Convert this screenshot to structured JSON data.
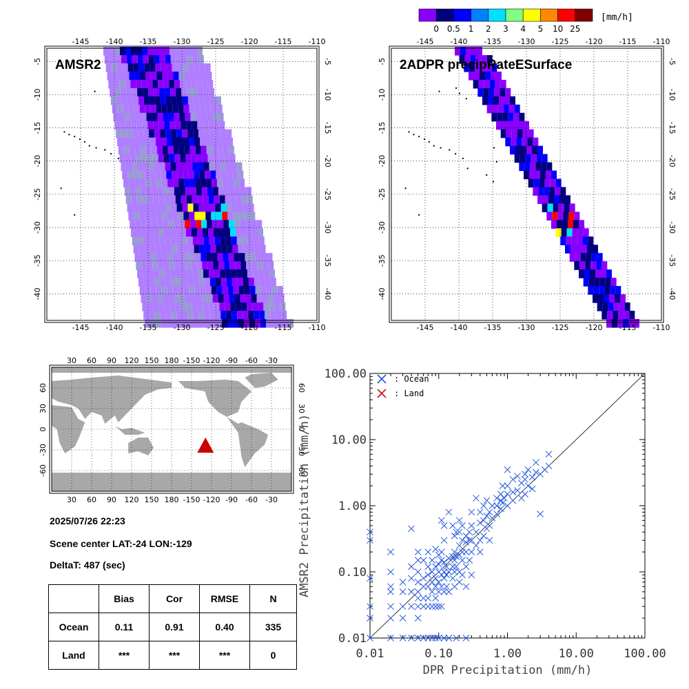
{
  "colorbar": {
    "unit": "[mm/h]",
    "colors": [
      "#8a00ff",
      "#000080",
      "#0000ff",
      "#0080ff",
      "#00e0ff",
      "#80ff80",
      "#ffff00",
      "#ff8800",
      "#ff0000",
      "#800000"
    ],
    "labels": [
      "0",
      "0.5",
      "1",
      "2",
      "3",
      "4",
      "5",
      "10",
      "25"
    ]
  },
  "maps": {
    "amsr2_title": "AMSR2",
    "dpr_title": "2ADPR precipRateESurface",
    "lon_ticks": [
      "-145",
      "-140",
      "-135",
      "-130",
      "-125",
      "-120",
      "-115",
      "-110"
    ],
    "lat_ticks": [
      "-5",
      "-10",
      "-15",
      "-20",
      "-25",
      "-30",
      "-35",
      "-40"
    ]
  },
  "globe": {
    "lon_ticks": [
      "30",
      "60",
      "90",
      "120",
      "150",
      "180",
      "-150",
      "-120",
      "-90",
      "-60",
      "-30"
    ],
    "lat_ticks": [
      "60",
      "30",
      "0",
      "-30",
      "-60"
    ],
    "scene_marker": {
      "lat": -24,
      "lon": -129,
      "color": "#cc0000"
    }
  },
  "info": {
    "date": "2025/07/26 22:23",
    "center": "Scene center LAT:-24   LON:-129",
    "delta": "DeltaT:  487 (sec)"
  },
  "stats": {
    "headers": [
      "",
      "Bias",
      "Cor",
      "RMSE",
      "N"
    ],
    "rows": [
      {
        "label": "Ocean",
        "values": [
          "0.11",
          "0.91",
          "0.40",
          "335"
        ]
      },
      {
        "label": "Land",
        "values": [
          "***",
          "***",
          "***",
          "0"
        ]
      }
    ]
  },
  "chart_data": {
    "type": "scatter",
    "xlabel": "DPR Precipitation (mm/h)",
    "ylabel": "AMSR2 Precipitation (mm/h)",
    "xscale": "log",
    "yscale": "log",
    "xlim": [
      0.01,
      100
    ],
    "ylim": [
      0.01,
      100
    ],
    "tick_labels": [
      "0.01",
      "0.10",
      "1.00",
      "10.00",
      "100.00"
    ],
    "one_to_one_line": true,
    "legend_position": "top-left",
    "series": [
      {
        "name": ": Ocean",
        "color": "#2255dd",
        "points": [
          [
            0.01,
            0.4
          ],
          [
            0.01,
            0.3
          ],
          [
            0.01,
            0.08
          ],
          [
            0.01,
            0.03
          ],
          [
            0.01,
            0.02
          ],
          [
            0.01,
            0.01
          ],
          [
            0.02,
            0.2
          ],
          [
            0.02,
            0.1
          ],
          [
            0.02,
            0.06
          ],
          [
            0.02,
            0.05
          ],
          [
            0.02,
            0.03
          ],
          [
            0.02,
            0.02
          ],
          [
            0.02,
            0.01
          ],
          [
            0.03,
            0.05
          ],
          [
            0.03,
            0.03
          ],
          [
            0.03,
            0.02
          ],
          [
            0.03,
            0.01
          ],
          [
            0.03,
            0.07
          ],
          [
            0.04,
            0.45
          ],
          [
            0.04,
            0.12
          ],
          [
            0.04,
            0.08
          ],
          [
            0.04,
            0.05
          ],
          [
            0.04,
            0.03
          ],
          [
            0.04,
            0.01
          ],
          [
            0.05,
            0.2
          ],
          [
            0.05,
            0.15
          ],
          [
            0.05,
            0.1
          ],
          [
            0.05,
            0.07
          ],
          [
            0.05,
            0.05
          ],
          [
            0.05,
            0.04
          ],
          [
            0.05,
            0.03
          ],
          [
            0.05,
            0.02
          ],
          [
            0.05,
            0.01
          ],
          [
            0.06,
            0.15
          ],
          [
            0.06,
            0.08
          ],
          [
            0.06,
            0.06
          ],
          [
            0.06,
            0.04
          ],
          [
            0.06,
            0.03
          ],
          [
            0.06,
            0.01
          ],
          [
            0.07,
            0.2
          ],
          [
            0.07,
            0.12
          ],
          [
            0.07,
            0.09
          ],
          [
            0.07,
            0.06
          ],
          [
            0.07,
            0.04
          ],
          [
            0.07,
            0.03
          ],
          [
            0.07,
            0.01
          ],
          [
            0.08,
            0.15
          ],
          [
            0.08,
            0.1
          ],
          [
            0.08,
            0.07
          ],
          [
            0.08,
            0.05
          ],
          [
            0.08,
            0.03
          ],
          [
            0.08,
            0.01
          ],
          [
            0.09,
            0.22
          ],
          [
            0.09,
            0.12
          ],
          [
            0.09,
            0.08
          ],
          [
            0.09,
            0.06
          ],
          [
            0.09,
            0.04
          ],
          [
            0.09,
            0.03
          ],
          [
            0.09,
            0.01
          ],
          [
            0.1,
            0.18
          ],
          [
            0.1,
            0.13
          ],
          [
            0.1,
            0.1
          ],
          [
            0.1,
            0.07
          ],
          [
            0.1,
            0.05
          ],
          [
            0.1,
            0.03
          ],
          [
            0.1,
            0.01
          ],
          [
            0.11,
            0.6
          ],
          [
            0.11,
            0.2
          ],
          [
            0.11,
            0.15
          ],
          [
            0.11,
            0.09
          ],
          [
            0.11,
            0.06
          ],
          [
            0.11,
            0.03
          ],
          [
            0.12,
            0.5
          ],
          [
            0.12,
            0.3
          ],
          [
            0.12,
            0.14
          ],
          [
            0.12,
            0.1
          ],
          [
            0.12,
            0.08
          ],
          [
            0.12,
            0.05
          ],
          [
            0.12,
            0.01
          ],
          [
            0.13,
            0.12
          ],
          [
            0.13,
            0.09
          ],
          [
            0.13,
            0.06
          ],
          [
            0.14,
            0.8
          ],
          [
            0.14,
            0.16
          ],
          [
            0.14,
            0.1
          ],
          [
            0.14,
            0.05
          ],
          [
            0.14,
            0.01
          ],
          [
            0.16,
            0.5
          ],
          [
            0.16,
            0.17
          ],
          [
            0.16,
            0.12
          ],
          [
            0.16,
            0.08
          ],
          [
            0.17,
            0.35
          ],
          [
            0.17,
            0.2
          ],
          [
            0.17,
            0.15
          ],
          [
            0.17,
            0.1
          ],
          [
            0.17,
            0.06
          ],
          [
            0.18,
            0.4
          ],
          [
            0.18,
            0.17
          ],
          [
            0.18,
            0.12
          ],
          [
            0.18,
            0.01
          ],
          [
            0.2,
            0.6
          ],
          [
            0.2,
            0.4
          ],
          [
            0.2,
            0.25
          ],
          [
            0.2,
            0.18
          ],
          [
            0.2,
            0.1
          ],
          [
            0.2,
            0.07
          ],
          [
            0.22,
            0.5
          ],
          [
            0.22,
            0.3
          ],
          [
            0.22,
            0.2
          ],
          [
            0.22,
            0.15
          ],
          [
            0.22,
            0.09
          ],
          [
            0.25,
            0.35
          ],
          [
            0.25,
            0.28
          ],
          [
            0.25,
            0.2
          ],
          [
            0.25,
            0.12
          ],
          [
            0.25,
            0.06
          ],
          [
            0.25,
            0.01
          ],
          [
            0.28,
            0.4
          ],
          [
            0.28,
            0.3
          ],
          [
            0.28,
            0.15
          ],
          [
            0.3,
            0.8
          ],
          [
            0.3,
            0.5
          ],
          [
            0.3,
            0.3
          ],
          [
            0.3,
            0.2
          ],
          [
            0.3,
            0.09
          ],
          [
            0.35,
            1.3
          ],
          [
            0.35,
            0.4
          ],
          [
            0.35,
            0.25
          ],
          [
            0.4,
            0.8
          ],
          [
            0.4,
            0.55
          ],
          [
            0.4,
            0.3
          ],
          [
            0.4,
            0.2
          ],
          [
            0.45,
            1.0
          ],
          [
            0.45,
            0.6
          ],
          [
            0.45,
            0.35
          ],
          [
            0.5,
            1.2
          ],
          [
            0.5,
            0.7
          ],
          [
            0.5,
            0.45
          ],
          [
            0.55,
            0.8
          ],
          [
            0.55,
            0.5
          ],
          [
            0.55,
            0.3
          ],
          [
            0.6,
            1.0
          ],
          [
            0.6,
            0.65
          ],
          [
            0.7,
            1.3
          ],
          [
            0.7,
            1.0
          ],
          [
            0.7,
            0.75
          ],
          [
            0.8,
            1.5
          ],
          [
            0.8,
            1.2
          ],
          [
            0.8,
            0.9
          ],
          [
            0.85,
            2.0
          ],
          [
            0.85,
            1.1
          ],
          [
            0.9,
            1.3
          ],
          [
            1.0,
            3.5
          ],
          [
            1.0,
            2.0
          ],
          [
            1.0,
            1.5
          ],
          [
            1.0,
            1.0
          ],
          [
            1.2,
            2.5
          ],
          [
            1.2,
            1.6
          ],
          [
            1.2,
            1.2
          ],
          [
            1.4,
            2.8
          ],
          [
            1.4,
            1.7
          ],
          [
            1.6,
            2.2
          ],
          [
            1.6,
            1.3
          ],
          [
            1.8,
            3.0
          ],
          [
            1.8,
            2.5
          ],
          [
            1.8,
            1.5
          ],
          [
            2.0,
            3.5
          ],
          [
            2.0,
            2.0
          ],
          [
            2.3,
            2.7
          ],
          [
            2.3,
            1.8
          ],
          [
            2.6,
            4.5
          ],
          [
            2.6,
            3.2
          ],
          [
            3.0,
            3.0
          ],
          [
            3.0,
            0.75
          ],
          [
            3.5,
            3.5
          ],
          [
            4.0,
            6.0
          ],
          [
            4.0,
            4.0
          ]
        ]
      },
      {
        "name": ": Land",
        "color": "#cc1111",
        "points": []
      }
    ]
  }
}
